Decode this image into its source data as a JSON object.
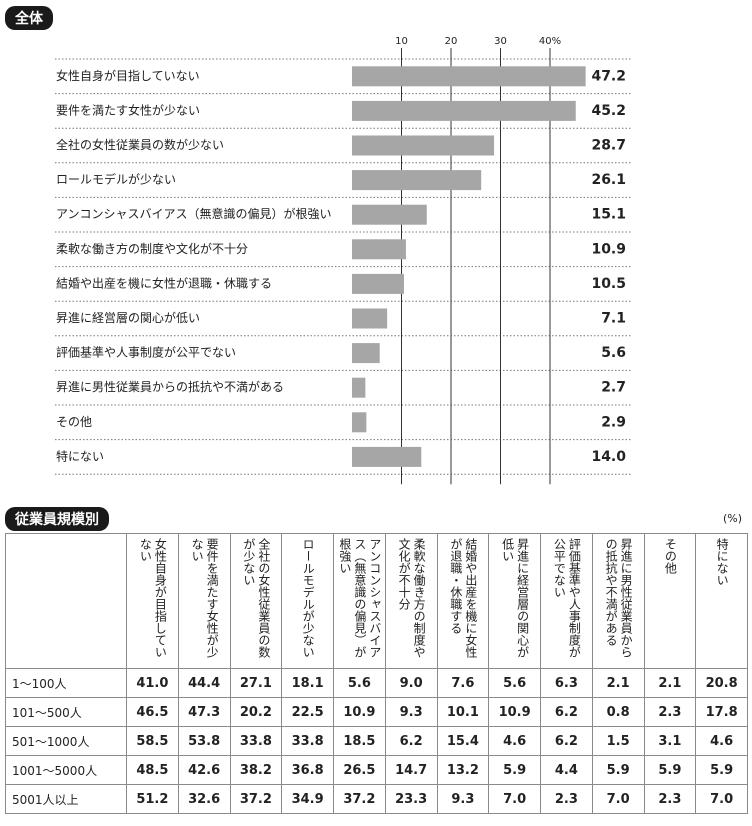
{
  "chart_data": {
    "type": "barh",
    "title": "全体",
    "categories": [
      "女性自身が目指していない",
      "要件を満たす女性が少ない",
      "全社の女性従業員の数が少ない",
      "ロールモデルが少ない",
      "アンコンシャスバイアス（無意識の偏見）が根強い",
      "柔軟な働き方の制度や文化が不十分",
      "結婚や出産を機に女性が退職・休職する",
      "昇進に経営層の関心が低い",
      "評価基準や人事制度が公平でない",
      "昇進に男性従業員からの抵抗や不満がある",
      "その他",
      "特にない"
    ],
    "values": [
      47.2,
      45.2,
      28.7,
      26.1,
      15.1,
      10.9,
      10.5,
      7.1,
      5.6,
      2.7,
      2.9,
      14.0
    ],
    "value_labels": [
      "47.2",
      "45.2",
      "28.7",
      "26.1",
      "15.1",
      "10.9",
      "10.5",
      "7.1",
      "5.6",
      "2.7",
      "2.9",
      "14.0"
    ],
    "color": "#a6a6a6",
    "xlim": [
      0,
      40
    ],
    "xticks": [
      10,
      20,
      30,
      {
        "value": 40,
        "label": "40%"
      }
    ],
    "grid": true
  },
  "table": {
    "title": "従業員規模別",
    "unit": "(%)",
    "columns": [
      "女性自身が目指していない",
      "要件を満たす女性が少ない",
      "全社の女性従業員の数が少ない",
      "ロールモデルが少ない",
      "アンコンシャスバイアス（無意識の偏見）が根強い",
      "柔軟な働き方の制度や文化が不十分",
      "結婚や出産を機に女性が退職・休職する",
      "昇進に経営層の関心が低い",
      "評価基準や人事制度が公平でない",
      "昇進に男性従業員からの抵抗や不満がある",
      "その他",
      "特にない"
    ],
    "rows": [
      {
        "label": "1～100人",
        "values": [
          "41.0",
          "44.4",
          "27.1",
          "18.1",
          "5.6",
          "9.0",
          "7.6",
          "5.6",
          "6.3",
          "2.1",
          "2.1",
          "20.8"
        ]
      },
      {
        "label": "101～500人",
        "values": [
          "46.5",
          "47.3",
          "20.2",
          "22.5",
          "10.9",
          "9.3",
          "10.1",
          "10.9",
          "6.2",
          "0.8",
          "2.3",
          "17.8"
        ]
      },
      {
        "label": "501～1000人",
        "values": [
          "58.5",
          "53.8",
          "33.8",
          "33.8",
          "18.5",
          "6.2",
          "15.4",
          "4.6",
          "6.2",
          "1.5",
          "3.1",
          "4.6"
        ]
      },
      {
        "label": "1001～5000人",
        "values": [
          "48.5",
          "42.6",
          "38.2",
          "36.8",
          "26.5",
          "14.7",
          "13.2",
          "5.9",
          "4.4",
          "5.9",
          "5.9",
          "5.9"
        ]
      },
      {
        "label": "5001人以上",
        "values": [
          "51.2",
          "32.6",
          "37.2",
          "34.9",
          "37.2",
          "23.3",
          "9.3",
          "7.0",
          "2.3",
          "7.0",
          "2.3",
          "7.0"
        ]
      }
    ]
  }
}
